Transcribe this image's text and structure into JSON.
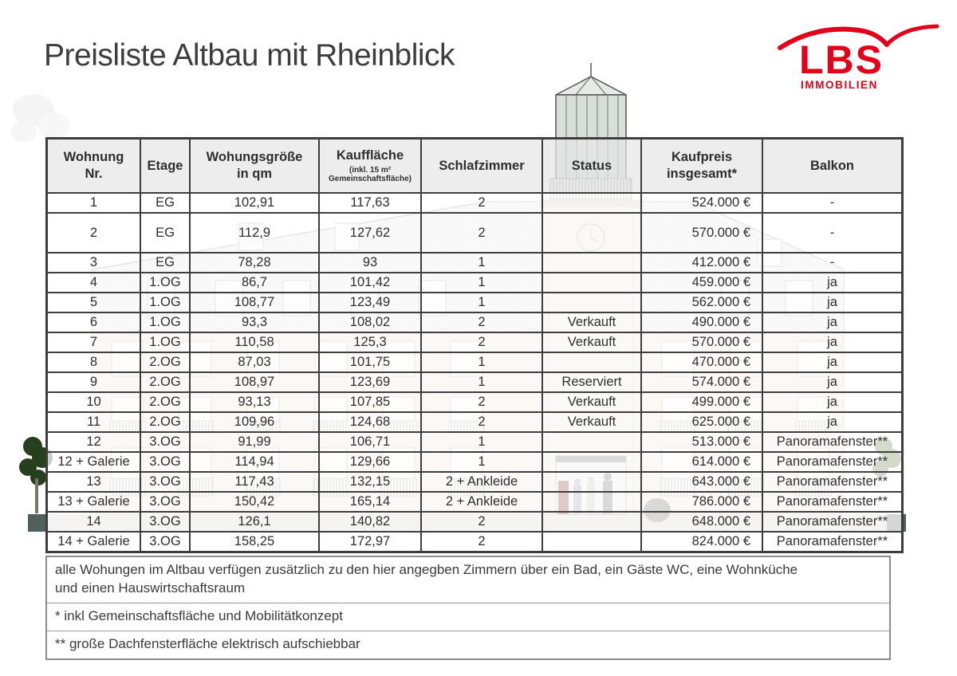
{
  "title": "Preisliste Altbau mit Rheinblick",
  "logo": {
    "name": "LBS",
    "subtitle": "IMMOBILIEN",
    "brand_color": "#e2001a"
  },
  "table": {
    "columns": [
      {
        "label": "Wohnung\nNr."
      },
      {
        "label": "Etage"
      },
      {
        "label": "Wohungsgröße\nin qm"
      },
      {
        "label": "Kauffläche",
        "sub": "(inkl. 15 m²\nGemeinschaftsfläche)"
      },
      {
        "label": "Schlafzimmer"
      },
      {
        "label": "Status"
      },
      {
        "label": "Kaufpreis\ninsgesamt*"
      },
      {
        "label": "Balkon"
      }
    ],
    "rows": [
      {
        "cells": [
          "1",
          "EG",
          "102,91",
          "117,63",
          "2",
          "",
          "524.000 €",
          "-"
        ],
        "tall": false
      },
      {
        "cells": [
          "2",
          "EG",
          "112,9",
          "127,62",
          "2",
          "",
          "570.000 €",
          "-"
        ],
        "tall": true
      },
      {
        "cells": [
          "3",
          "EG",
          "78,28",
          "93",
          "1",
          "",
          "412.000 €",
          "-"
        ],
        "tall": false
      },
      {
        "cells": [
          "4",
          "1.OG",
          "86,7",
          "101,42",
          "1",
          "",
          "459.000 €",
          "ja"
        ],
        "tall": false
      },
      {
        "cells": [
          "5",
          "1.OG",
          "108,77",
          "123,49",
          "1",
          "",
          "562.000 €",
          "ja"
        ],
        "tall": false
      },
      {
        "cells": [
          "6",
          "1.OG",
          "93,3",
          "108,02",
          "2",
          "Verkauft",
          "490.000 €",
          "ja"
        ],
        "tall": false
      },
      {
        "cells": [
          "7",
          "1.OG",
          "110,58",
          "125,3",
          "2",
          "Verkauft",
          "570.000 €",
          "ja"
        ],
        "tall": false
      },
      {
        "cells": [
          "8",
          "2.OG",
          "87,03",
          "101,75",
          "1",
          "",
          "470.000 €",
          "ja"
        ],
        "tall": false
      },
      {
        "cells": [
          "9",
          "2.OG",
          "108,97",
          "123,69",
          "1",
          "Reserviert",
          "574.000 €",
          "ja"
        ],
        "tall": false
      },
      {
        "cells": [
          "10",
          "2.OG",
          "93,13",
          "107,85",
          "2",
          "Verkauft",
          "499.000 €",
          "ja"
        ],
        "tall": false
      },
      {
        "cells": [
          "11",
          "2.OG",
          "109,96",
          "124,68",
          "2",
          "Verkauft",
          "625.000 €",
          "ja"
        ],
        "tall": false
      },
      {
        "cells": [
          "12",
          "3.OG",
          "91,99",
          "106,71",
          "1",
          "",
          "513.000 €",
          "Panoramafenster**"
        ],
        "tall": false
      },
      {
        "cells": [
          "12 + Galerie",
          "3.OG",
          "114,94",
          "129,66",
          "1",
          "",
          "614.000 €",
          "Panoramafenster**"
        ],
        "tall": false
      },
      {
        "cells": [
          "13",
          "3.OG",
          "117,43",
          "132,15",
          "2 + Ankleide",
          "",
          "643.000 €",
          "Panoramafenster**"
        ],
        "tall": false
      },
      {
        "cells": [
          "13 + Galerie",
          "3.OG",
          "150,42",
          "165,14",
          "2 + Ankleide",
          "",
          "786.000 €",
          "Panoramafenster**"
        ],
        "tall": false
      },
      {
        "cells": [
          "14",
          "3.OG",
          "126,1",
          "140,82",
          "2",
          "",
          "648.000 €",
          "Panoramafenster**"
        ],
        "tall": false
      },
      {
        "cells": [
          "14 + Galerie",
          "3.OG",
          "158,25",
          "172,97",
          "2",
          "",
          "824.000 €",
          "Panoramafenster**"
        ],
        "tall": false
      }
    ]
  },
  "footnotes": [
    "alle Wohungen im Altbau verfügen zusätzlich zu den hier angegben Zimmern über ein Bad, ein Gäste WC, eine Wohnküche\nund einen Hauswirtschaftsraum",
    "* inkl Gemeinschaftsfläche und Mobilitätkonzept",
    "** große Dachfensterfläche elektrisch aufschiebbar"
  ]
}
